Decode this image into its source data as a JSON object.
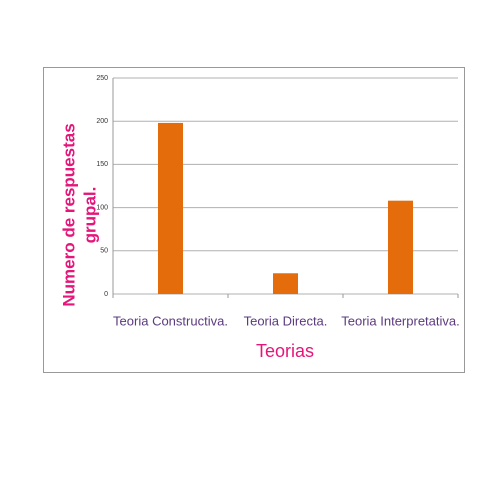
{
  "chart_data": {
    "type": "bar",
    "y_label": [
      "Numero de respuestas",
      "grupal."
    ],
    "x_label": "Teorias",
    "categories": [
      "Teoria Constructiva.",
      "Teoria Directa.",
      "Teoria Interpretativa."
    ],
    "values": [
      198,
      24,
      108
    ],
    "color": "#e46c0a",
    "ylim": [
      0,
      250
    ],
    "yticks": [
      0,
      50,
      100,
      150,
      200,
      250
    ],
    "grid": true
  }
}
